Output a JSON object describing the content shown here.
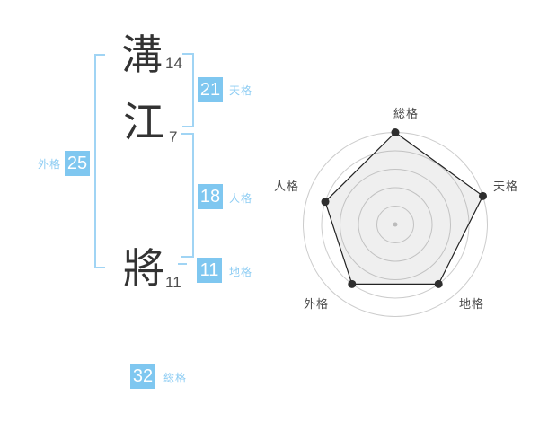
{
  "colors": {
    "box_blue": "#7fc7f0",
    "label_blue": "#8cccf3",
    "bracket_blue": "#a0d4f4",
    "kanji_dark": "#333333",
    "stroke_count_gray": "#4f4f4f",
    "radar_label_gray": "#4a4a4a",
    "radar_ring_gray": "#cccccc",
    "radar_line_dark": "#222222"
  },
  "name": {
    "chars": [
      {
        "glyph": "溝",
        "strokes": "14"
      },
      {
        "glyph": "江",
        "strokes": "7"
      },
      {
        "glyph": "將",
        "strokes": "11"
      }
    ]
  },
  "gokaku": {
    "tenkaku": {
      "value": "21",
      "label": "天格"
    },
    "jinkaku": {
      "value": "18",
      "label": "人格"
    },
    "chikaku": {
      "value": "11",
      "label": "地格"
    },
    "gaikaku": {
      "value": "25",
      "label": "外格"
    },
    "soukaku": {
      "value": "32",
      "label": "総格"
    }
  },
  "chart_data": {
    "type": "radar",
    "axes": [
      "総格",
      "天格",
      "地格",
      "外格",
      "人格"
    ],
    "values": [
      5,
      5,
      4,
      4,
      4
    ],
    "max": 5,
    "rings": 5,
    "axis_order": "clockwise-from-top",
    "axis_source_scores": {
      "総格": 32,
      "天格": 21,
      "地格": 11,
      "外格": 25,
      "人格": 18
    },
    "grid": "circular",
    "legend": false
  }
}
